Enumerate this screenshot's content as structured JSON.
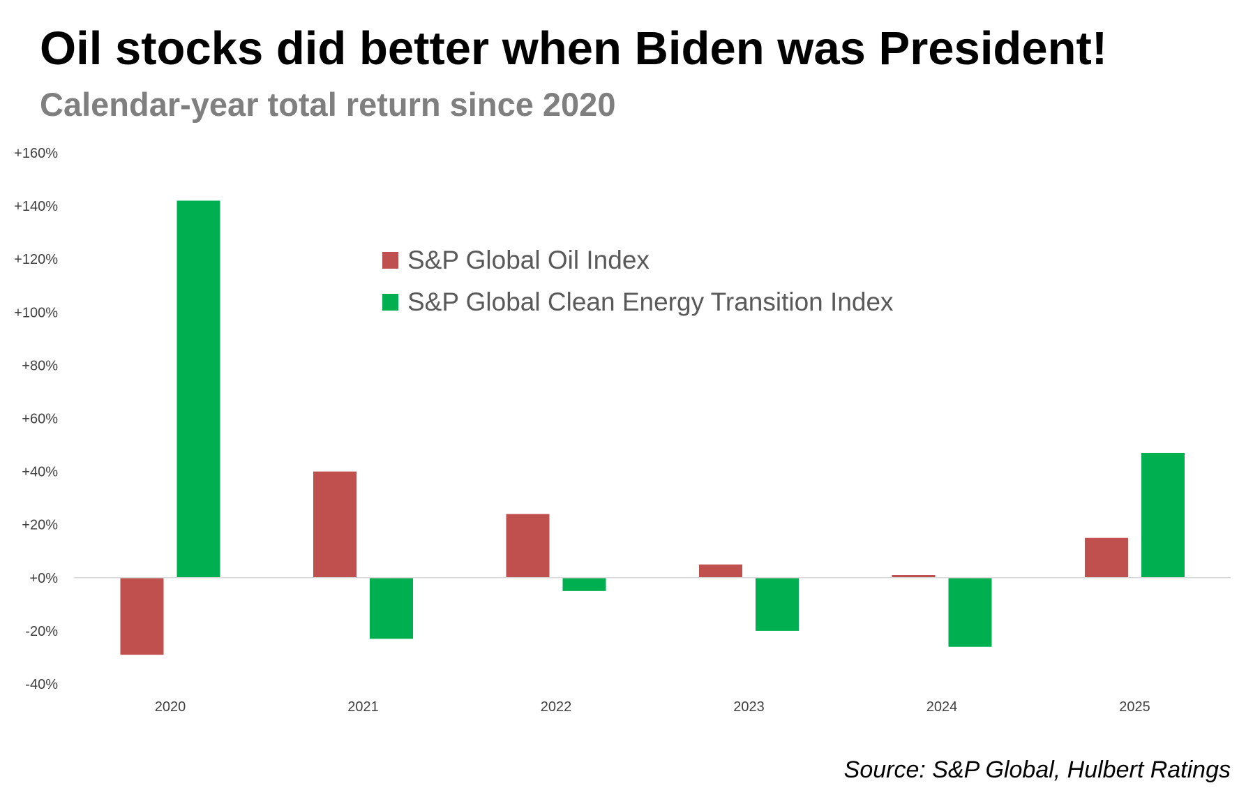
{
  "chart_data": {
    "type": "bar",
    "title": "Oil stocks did better when Biden was President!",
    "subtitle": "Calendar-year total return since 2020",
    "categories": [
      "2020",
      "2021",
      "2022",
      "2023",
      "2024",
      "2025"
    ],
    "series": [
      {
        "name": "S&P Global Oil Index",
        "color": "#c0504d",
        "values": [
          -29,
          40,
          24,
          5,
          1,
          15
        ]
      },
      {
        "name": "S&P Global Clean Energy Transition Index",
        "color": "#00b050",
        "values": [
          142,
          -23,
          -5,
          -20,
          -26,
          47
        ]
      }
    ],
    "ylim": [
      -40,
      160
    ],
    "yticks": [
      160,
      140,
      120,
      100,
      80,
      60,
      40,
      20,
      0,
      -20,
      -40
    ],
    "ytick_labels": [
      "+160%",
      "+140%",
      "+120%",
      "+100%",
      "+80%",
      "+60%",
      "+40%",
      "+20%",
      "+0%",
      "-20%",
      "-40%"
    ],
    "xlabel": "",
    "ylabel": "",
    "grid": false,
    "legend_position": "top-center",
    "source": "Source: S&P Global, Hulbert Ratings"
  }
}
